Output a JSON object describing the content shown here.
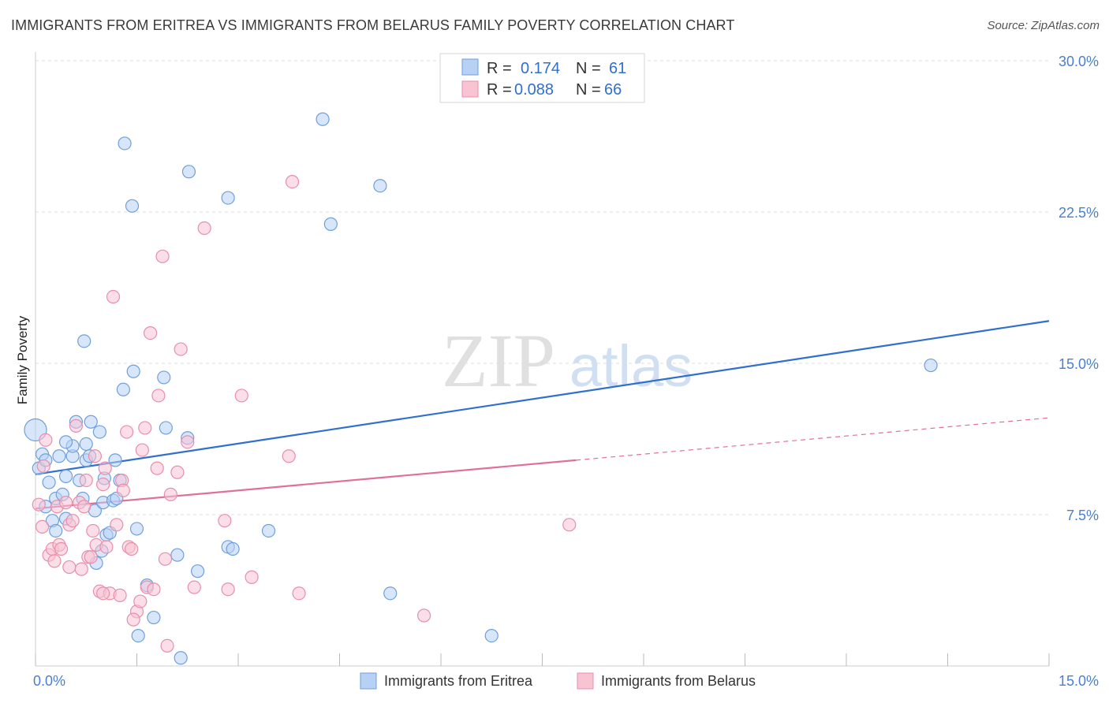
{
  "header": {
    "title": "IMMIGRANTS FROM ERITREA VS IMMIGRANTS FROM BELARUS FAMILY POVERTY CORRELATION CHART",
    "source": "Source: ZipAtlas.com"
  },
  "watermark": {
    "zip": "ZIP",
    "atlas": "atlas"
  },
  "colors": {
    "eritrea_fill": "#b7d1f5",
    "eritrea_stroke": "#6f9fdc",
    "eritrea_line": "#2f6fcf",
    "belarus_fill": "#f8c3d3",
    "belarus_stroke": "#e78fab",
    "belarus_line": "#e0709a",
    "tick_text": "#4a7fd0",
    "grid": "#dddddd"
  },
  "legend_top": {
    "rows": [
      {
        "r_label": "R =",
        "r_value": "0.174",
        "n_label": "N =",
        "n_value": "61"
      },
      {
        "r_label": "R =",
        "r_value": "0.088",
        "n_label": "N =",
        "n_value": "66"
      }
    ]
  },
  "legend_bottom": [
    {
      "label": "Immigrants from Eritrea"
    },
    {
      "label": "Immigrants from Belarus"
    }
  ],
  "chart_data": {
    "type": "scatter",
    "xlabel": "",
    "ylabel": "Family Poverty",
    "xlim": [
      0,
      15
    ],
    "ylim": [
      0,
      30
    ],
    "x_tick_labels": [
      "0.0%",
      "15.0%"
    ],
    "y_ticks": [
      7.5,
      15.0,
      22.5,
      30.0
    ],
    "y_tick_labels": [
      "7.5%",
      "15.0%",
      "22.5%",
      "30.0%"
    ],
    "grid": true,
    "legend_position": "top-center",
    "series": [
      {
        "name": "Immigrants from Eritrea",
        "r": 0.174,
        "n": 61,
        "trend": {
          "x0": 0.0,
          "y0": 9.5,
          "x1": 15.0,
          "y1": 17.1
        },
        "points": [
          [
            0.0,
            11.7
          ],
          [
            0.05,
            9.8
          ],
          [
            0.1,
            10.5
          ],
          [
            0.15,
            10.2
          ],
          [
            0.2,
            9.1
          ],
          [
            0.15,
            7.9
          ],
          [
            0.25,
            7.2
          ],
          [
            0.3,
            6.7
          ],
          [
            0.3,
            8.3
          ],
          [
            0.35,
            10.4
          ],
          [
            0.4,
            8.5
          ],
          [
            0.45,
            9.4
          ],
          [
            0.45,
            7.3
          ],
          [
            0.55,
            10.4
          ],
          [
            0.55,
            10.9
          ],
          [
            0.6,
            12.1
          ],
          [
            0.65,
            9.2
          ],
          [
            0.7,
            8.3
          ],
          [
            0.72,
            16.1
          ],
          [
            0.75,
            11.0
          ],
          [
            0.75,
            10.2
          ],
          [
            0.82,
            12.1
          ],
          [
            0.88,
            7.7
          ],
          [
            0.9,
            5.1
          ],
          [
            0.95,
            11.6
          ],
          [
            0.98,
            5.7
          ],
          [
            1.0,
            8.1
          ],
          [
            1.02,
            9.3
          ],
          [
            1.05,
            6.5
          ],
          [
            1.1,
            6.6
          ],
          [
            1.15,
            8.2
          ],
          [
            1.18,
            10.2
          ],
          [
            1.25,
            9.2
          ],
          [
            1.3,
            13.7
          ],
          [
            1.32,
            25.9
          ],
          [
            1.43,
            22.8
          ],
          [
            1.45,
            14.6
          ],
          [
            1.5,
            6.8
          ],
          [
            1.52,
            1.5
          ],
          [
            1.65,
            4.0
          ],
          [
            1.75,
            2.4
          ],
          [
            1.9,
            14.3
          ],
          [
            1.93,
            11.8
          ],
          [
            2.1,
            5.5
          ],
          [
            2.15,
            0.4
          ],
          [
            2.25,
            11.3
          ],
          [
            2.27,
            24.5
          ],
          [
            2.4,
            4.7
          ],
          [
            2.85,
            23.2
          ],
          [
            2.85,
            5.9
          ],
          [
            2.92,
            5.8
          ],
          [
            3.45,
            6.7
          ],
          [
            4.25,
            27.1
          ],
          [
            4.37,
            21.9
          ],
          [
            5.1,
            23.8
          ],
          [
            5.25,
            3.6
          ],
          [
            6.75,
            1.5
          ],
          [
            13.25,
            14.9
          ],
          [
            0.45,
            11.1
          ],
          [
            0.8,
            10.4
          ],
          [
            1.2,
            8.3
          ]
        ]
      },
      {
        "name": "Immigrants from Belarus",
        "r": 0.088,
        "n": 66,
        "trend": {
          "x0": 0.0,
          "y0": 7.8,
          "x1": 8.0,
          "y1": 10.2
        },
        "trend_extension": {
          "x0": 8.0,
          "y0": 10.2,
          "x1": 15.0,
          "y1": 12.3
        },
        "points": [
          [
            0.05,
            8.0
          ],
          [
            0.1,
            6.9
          ],
          [
            0.12,
            9.9
          ],
          [
            0.15,
            11.2
          ],
          [
            0.2,
            5.5
          ],
          [
            0.25,
            5.8
          ],
          [
            0.28,
            5.2
          ],
          [
            0.32,
            7.9
          ],
          [
            0.35,
            6.0
          ],
          [
            0.38,
            5.8
          ],
          [
            0.45,
            8.1
          ],
          [
            0.5,
            7.0
          ],
          [
            0.55,
            7.2
          ],
          [
            0.6,
            11.9
          ],
          [
            0.65,
            8.1
          ],
          [
            0.68,
            4.8
          ],
          [
            0.72,
            7.9
          ],
          [
            0.75,
            9.2
          ],
          [
            0.78,
            5.4
          ],
          [
            0.82,
            5.4
          ],
          [
            0.85,
            6.7
          ],
          [
            0.88,
            10.4
          ],
          [
            0.9,
            6.0
          ],
          [
            0.95,
            3.7
          ],
          [
            1.0,
            9.0
          ],
          [
            1.03,
            9.8
          ],
          [
            1.05,
            5.9
          ],
          [
            1.1,
            3.6
          ],
          [
            1.15,
            18.3
          ],
          [
            1.2,
            7.0
          ],
          [
            1.25,
            3.5
          ],
          [
            1.28,
            9.2
          ],
          [
            1.3,
            8.7
          ],
          [
            1.35,
            11.6
          ],
          [
            1.38,
            5.9
          ],
          [
            1.42,
            5.8
          ],
          [
            1.5,
            2.7
          ],
          [
            1.55,
            3.2
          ],
          [
            1.58,
            10.7
          ],
          [
            1.62,
            11.8
          ],
          [
            1.65,
            3.9
          ],
          [
            1.7,
            16.5
          ],
          [
            1.75,
            3.8
          ],
          [
            1.8,
            9.8
          ],
          [
            1.82,
            13.4
          ],
          [
            1.88,
            20.3
          ],
          [
            1.92,
            5.3
          ],
          [
            1.95,
            1.0
          ],
          [
            2.0,
            8.5
          ],
          [
            2.1,
            9.6
          ],
          [
            2.15,
            15.7
          ],
          [
            2.25,
            11.1
          ],
          [
            2.35,
            3.9
          ],
          [
            2.5,
            21.7
          ],
          [
            2.8,
            7.2
          ],
          [
            2.85,
            3.8
          ],
          [
            3.05,
            13.4
          ],
          [
            3.2,
            4.4
          ],
          [
            3.75,
            10.4
          ],
          [
            3.8,
            24.0
          ],
          [
            3.9,
            3.6
          ],
          [
            5.75,
            2.5
          ],
          [
            7.9,
            7.0
          ],
          [
            1.45,
            2.3
          ],
          [
            0.5,
            4.9
          ],
          [
            1.0,
            3.6
          ]
        ]
      }
    ]
  }
}
